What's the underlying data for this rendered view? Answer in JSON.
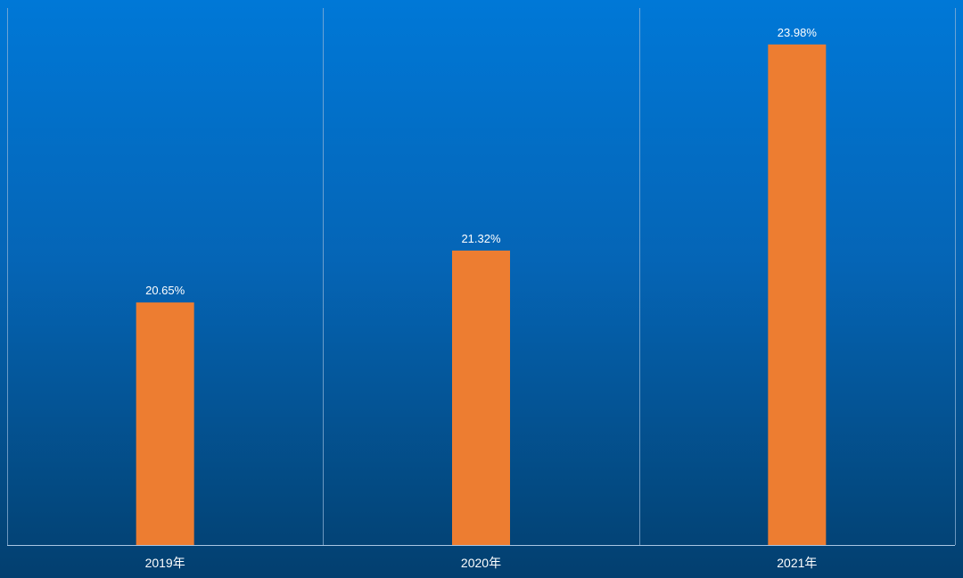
{
  "chart_data": {
    "type": "bar",
    "categories": [
      "2019年",
      "2020年",
      "2021年"
    ],
    "values": [
      20.65,
      21.32,
      23.98
    ],
    "value_labels": [
      "20.65%",
      "21.32%",
      "23.98%"
    ],
    "title": "",
    "xlabel": "",
    "ylabel": "",
    "ylim": [
      17.52,
      24.45
    ],
    "grid": "vertical category separators",
    "legend": "none"
  },
  "colors": {
    "bar": "#ed7d31",
    "background_top": "#0078d7",
    "background_bottom": "#033f6f",
    "text": "#ffffff"
  }
}
